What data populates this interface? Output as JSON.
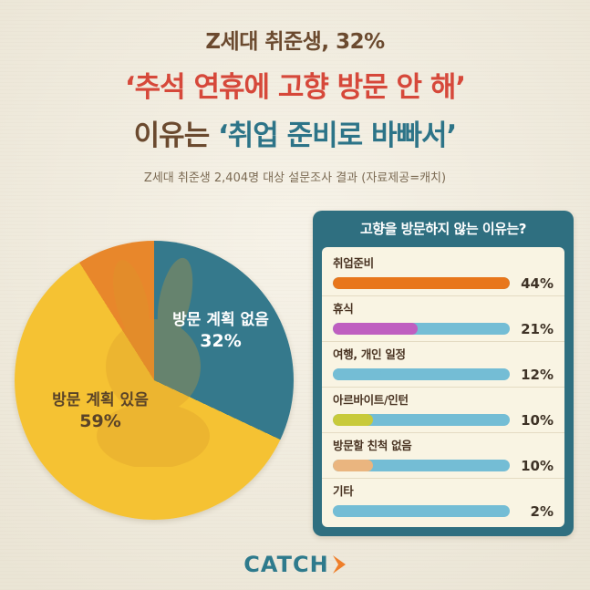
{
  "title": {
    "line1": "Z세대 취준생, 32%",
    "line2": "‘추석 연휴에 고향 방문 안 해’",
    "line3_prefix": "이유는 ",
    "line3_highlight": "‘취업 준비로 바빠서’",
    "subtitle": "Z세대 취준생 2,404명 대상 설문조사 결과 (자료제공=캐치)"
  },
  "chart_data": [
    {
      "type": "pie",
      "start_angle_deg": 0,
      "clockwise": true,
      "slices": [
        {
          "label": "방문 계획 없음",
          "value_label": "32%",
          "value": 32,
          "color": "#35798c"
        },
        {
          "label": "방문 계획 있음",
          "value_label": "59%",
          "value": 59,
          "color": "#f5c233"
        },
        {
          "label": "",
          "value_label": "",
          "value": 9,
          "color": "#e8872b"
        }
      ]
    },
    {
      "type": "bar",
      "orientation": "horizontal",
      "title": "고향을 방문하지 않는 이유는?",
      "categories": [
        "취업준비",
        "휴식",
        "여행, 개인 일정",
        "아르바이트/인턴",
        "방문할 친척 없음",
        "기타"
      ],
      "values": [
        44,
        21,
        12,
        10,
        10,
        2
      ],
      "value_labels": [
        "44%",
        "21%",
        "12%",
        "10%",
        "10%",
        "2%"
      ],
      "bar_colors": [
        "#e8761b",
        "#bf5ec0",
        "#74bdd5",
        "#c8ca3a",
        "#eab57f",
        "#74bdd5"
      ],
      "track_color": "#74bdd5",
      "xlim": [
        0,
        44
      ],
      "legend": "none",
      "grid": false
    }
  ],
  "logo": {
    "text": "CATCH"
  },
  "colors": {
    "background": "#f2ecdc",
    "title_brown": "#6b4a2f",
    "title_red": "#d6483a",
    "title_teal": "#2d7488",
    "panel_teal": "#2f6f80",
    "panel_cream": "#f9f4e3",
    "pie_yellow": "#f5c233",
    "pie_blue": "#35798c",
    "pie_orange": "#e8872b",
    "bar_track": "#74bdd5",
    "logo_teal": "#2e7a8c",
    "logo_orange": "#ef7f2a"
  }
}
